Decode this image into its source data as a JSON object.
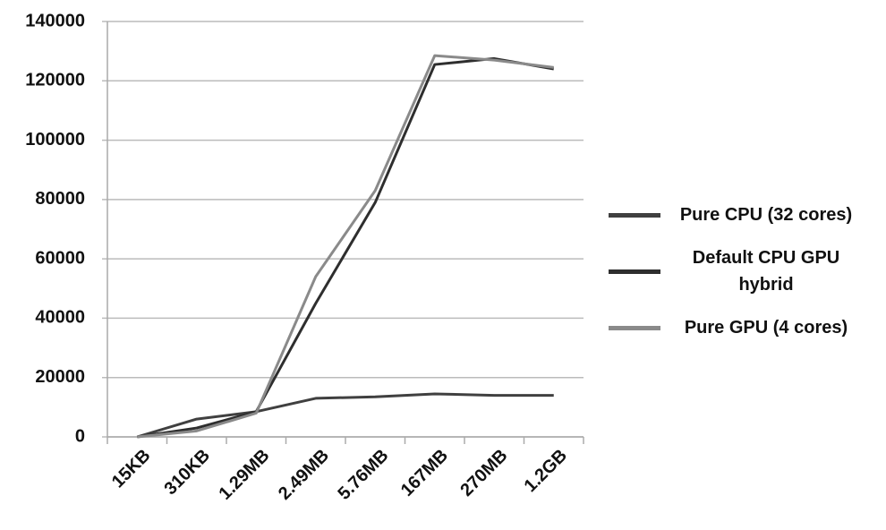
{
  "chart_data": {
    "type": "line",
    "categories": [
      "15KB",
      "310KB",
      "1.29MB",
      "2.49MB",
      "5.76MB",
      "167MB",
      "270MB",
      "1.2GB"
    ],
    "series": [
      {
        "name": "Pure CPU (32 cores)",
        "color": "#404040",
        "values": [
          0,
          6000,
          8500,
          13000,
          13500,
          14500,
          14000,
          14000
        ]
      },
      {
        "name": "Default CPU GPU hybrid",
        "color": "#2e2e2e",
        "values": [
          0,
          3000,
          8500,
          45000,
          79000,
          125500,
          127500,
          124000
        ]
      },
      {
        "name": "Pure GPU (4 cores)",
        "color": "#8a8a8a",
        "values": [
          0,
          2000,
          8000,
          54000,
          83000,
          128500,
          127000,
          124500
        ]
      }
    ],
    "ylim": [
      0,
      140000
    ],
    "yticks": [
      0,
      20000,
      40000,
      60000,
      80000,
      100000,
      120000,
      140000
    ],
    "grid": true,
    "legend": "right"
  }
}
